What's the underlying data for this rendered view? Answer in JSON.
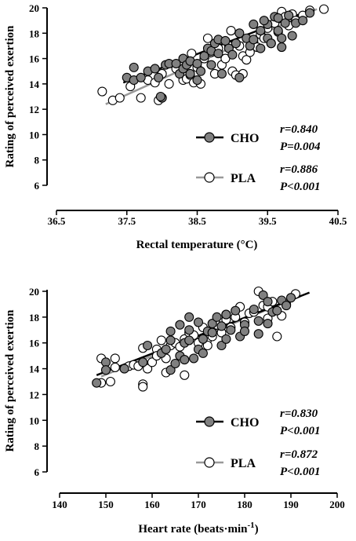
{
  "chart_data": [
    {
      "type": "scatter",
      "xlabel": "Rectal temperature (°C)",
      "ylabel": "Rating of perceived exertion",
      "xlim": [
        36.5,
        40.5
      ],
      "ylim": [
        6,
        20
      ],
      "xticks": [
        "36.5",
        "37.5",
        "38.5",
        "39.5",
        "40.5"
      ],
      "yticks": [
        "6",
        "8",
        "10",
        "12",
        "14",
        "16",
        "18",
        "20"
      ],
      "series": [
        {
          "name": "CHO",
          "marker": "filled-circle",
          "color": "#808080",
          "line_color": "#000000",
          "stats": [
            "r=0.840",
            "P=0.004"
          ],
          "fit": [
            [
              37.45,
              14.1
            ],
            [
              40.1,
              19.8
            ]
          ],
          "points": [
            [
              37.5,
              14.5
            ],
            [
              37.6,
              15.3
            ],
            [
              37.6,
              14.3
            ],
            [
              37.7,
              14.5
            ],
            [
              37.8,
              15.0
            ],
            [
              37.9,
              15.2
            ],
            [
              37.95,
              14.5
            ],
            [
              38.0,
              12.9
            ],
            [
              38.05,
              15.5
            ],
            [
              38.1,
              15.6
            ],
            [
              38.2,
              15.6
            ],
            [
              38.25,
              14.8
            ],
            [
              38.3,
              15.2
            ],
            [
              38.3,
              16.0
            ],
            [
              38.35,
              15.5
            ],
            [
              38.4,
              15.8
            ],
            [
              38.4,
              14.8
            ],
            [
              38.5,
              14.3
            ],
            [
              38.5,
              15.6
            ],
            [
              38.55,
              15.0
            ],
            [
              38.6,
              16.2
            ],
            [
              38.65,
              16.8
            ],
            [
              38.7,
              15.5
            ],
            [
              38.7,
              16.6
            ],
            [
              38.75,
              17.2
            ],
            [
              38.8,
              17.5
            ],
            [
              38.8,
              16.4
            ],
            [
              38.85,
              14.8
            ],
            [
              38.9,
              17.4
            ],
            [
              38.95,
              16.8
            ],
            [
              39.0,
              16.3
            ],
            [
              39.05,
              17.2
            ],
            [
              39.1,
              18.0
            ],
            [
              39.1,
              14.5
            ],
            [
              39.2,
              17.6
            ],
            [
              39.25,
              17.0
            ],
            [
              39.3,
              17.5
            ],
            [
              39.3,
              18.7
            ],
            [
              39.4,
              18.2
            ],
            [
              39.4,
              16.8
            ],
            [
              39.5,
              18.7
            ],
            [
              39.5,
              17.6
            ],
            [
              39.55,
              17.2
            ],
            [
              39.6,
              19.3
            ],
            [
              39.65,
              19.2
            ],
            [
              39.65,
              18.2
            ],
            [
              39.7,
              17.6
            ],
            [
              39.7,
              16.9
            ],
            [
              39.75,
              18.8
            ],
            [
              39.8,
              19.4
            ],
            [
              39.85,
              17.8
            ],
            [
              39.9,
              18.8
            ],
            [
              40.0,
              19.0
            ],
            [
              40.1,
              19.6
            ],
            [
              39.45,
              19.0
            ],
            [
              37.98,
              13.0
            ]
          ]
        },
        {
          "name": "PLA",
          "marker": "open-circle",
          "color": "#ffffff",
          "line_color": "#999999",
          "stats": [
            "r=0.886",
            "P<0.001"
          ],
          "fit": [
            [
              37.2,
              12.4
            ],
            [
              40.2,
              19.9
            ]
          ],
          "points": [
            [
              37.15,
              13.4
            ],
            [
              37.3,
              12.7
            ],
            [
              37.4,
              12.9
            ],
            [
              37.55,
              13.8
            ],
            [
              37.7,
              12.9
            ],
            [
              37.8,
              14.3
            ],
            [
              37.9,
              14.1
            ],
            [
              37.95,
              12.7
            ],
            [
              38.0,
              14.8
            ],
            [
              38.1,
              14.0
            ],
            [
              38.2,
              15.2
            ],
            [
              38.3,
              14.3
            ],
            [
              38.35,
              14.4
            ],
            [
              38.4,
              14.7
            ],
            [
              38.45,
              14.1
            ],
            [
              38.5,
              15.3
            ],
            [
              38.55,
              14.0
            ],
            [
              38.6,
              16.0
            ],
            [
              38.65,
              17.6
            ],
            [
              38.7,
              16.5
            ],
            [
              38.8,
              16.8
            ],
            [
              38.85,
              15.5
            ],
            [
              38.9,
              16.0
            ],
            [
              38.95,
              17.0
            ],
            [
              39.0,
              15.0
            ],
            [
              39.05,
              14.7
            ],
            [
              39.1,
              17.0
            ],
            [
              39.15,
              16.2
            ],
            [
              39.2,
              15.9
            ],
            [
              39.3,
              17.3
            ],
            [
              39.35,
              16.9
            ],
            [
              39.4,
              17.9
            ],
            [
              39.45,
              17.6
            ],
            [
              39.5,
              18.4
            ],
            [
              39.55,
              17.2
            ],
            [
              39.6,
              18.8
            ],
            [
              39.65,
              18.1
            ],
            [
              39.7,
              19.7
            ],
            [
              39.75,
              19.3
            ],
            [
              39.8,
              18.6
            ],
            [
              39.85,
              19.5
            ],
            [
              39.9,
              19.0
            ],
            [
              40.0,
              19.4
            ],
            [
              40.1,
              19.8
            ],
            [
              40.3,
              19.9
            ],
            [
              38.0,
              12.9
            ],
            [
              38.75,
              14.8
            ],
            [
              38.98,
              18.2
            ],
            [
              39.25,
              16.5
            ],
            [
              39.15,
              14.8
            ],
            [
              38.42,
              16.4
            ]
          ]
        }
      ]
    },
    {
      "type": "scatter",
      "xlabel": "Heart rate (beats·min",
      "xlabel_sup": "-1",
      "xlabel_end": ")",
      "ylabel": "Rating of perceived exertion",
      "xlim": [
        140,
        200
      ],
      "ylim": [
        6,
        20
      ],
      "xticks": [
        "140",
        "150",
        "160",
        "170",
        "180",
        "190",
        "200"
      ],
      "yticks": [
        "6",
        "8",
        "10",
        "12",
        "14",
        "16",
        "18",
        "20"
      ],
      "series": [
        {
          "name": "CHO",
          "marker": "filled-circle",
          "color": "#808080",
          "line_color": "#000000",
          "stats": [
            "r=0.830",
            "P<0.001"
          ],
          "fit": [
            [
              148,
              13.5
            ],
            [
              194,
              19.9
            ]
          ],
          "points": [
            [
              148,
              12.9
            ],
            [
              150,
              14.5
            ],
            [
              150,
              13.9
            ],
            [
              154,
              14.0
            ],
            [
              158,
              14.5
            ],
            [
              159,
              15.8
            ],
            [
              162,
              15.2
            ],
            [
              163,
              15.5
            ],
            [
              164,
              16.2
            ],
            [
              164,
              13.9
            ],
            [
              165,
              14.4
            ],
            [
              166,
              17.4
            ],
            [
              166,
              15.0
            ],
            [
              167,
              16.0
            ],
            [
              167,
              14.7
            ],
            [
              168,
              17.0
            ],
            [
              168,
              16.2
            ],
            [
              169,
              14.8
            ],
            [
              170,
              17.6
            ],
            [
              170,
              15.5
            ],
            [
              171,
              15.2
            ],
            [
              172,
              16.9
            ],
            [
              173,
              17.5
            ],
            [
              173,
              16.8
            ],
            [
              174,
              18.0
            ],
            [
              175,
              17.3
            ],
            [
              175,
              15.8
            ],
            [
              176,
              18.2
            ],
            [
              176,
              16.3
            ],
            [
              177,
              17.0
            ],
            [
              178,
              18.5
            ],
            [
              179,
              16.5
            ],
            [
              180,
              17.4
            ],
            [
              180,
              16.9
            ],
            [
              182,
              18.6
            ],
            [
              183,
              17.7
            ],
            [
              184,
              19.7
            ],
            [
              185,
              19.2
            ],
            [
              185,
              17.5
            ],
            [
              186,
              18.4
            ],
            [
              187,
              18.5
            ],
            [
              188,
              19.3
            ],
            [
              189,
              18.9
            ],
            [
              190,
              19.5
            ],
            [
              183,
              16.7
            ],
            [
              168,
              18.0
            ],
            [
              171,
              16.3
            ],
            [
              164,
              16.9
            ]
          ]
        },
        {
          "name": "PLA",
          "marker": "open-circle",
          "color": "#ffffff",
          "line_color": "#999999",
          "stats": [
            "r=0.872",
            "P<0.001"
          ],
          "fit": [
            [
              149,
              13.4
            ],
            [
              192,
              19.6
            ]
          ],
          "points": [
            [
              149,
              14.8
            ],
            [
              149,
              12.9
            ],
            [
              151,
              13.0
            ],
            [
              152,
              14.1
            ],
            [
              152,
              14.8
            ],
            [
              155,
              14.2
            ],
            [
              156,
              14.3
            ],
            [
              157,
              14.2
            ],
            [
              158,
              15.6
            ],
            [
              158,
              12.8
            ],
            [
              158,
              12.6
            ],
            [
              159,
              14.0
            ],
            [
              160,
              14.5
            ],
            [
              161,
              15.5
            ],
            [
              161,
              15.0
            ],
            [
              162,
              16.2
            ],
            [
              163,
              14.8
            ],
            [
              163,
              13.7
            ],
            [
              164,
              15.8
            ],
            [
              165,
              16.0
            ],
            [
              166,
              15.7
            ],
            [
              167,
              16.3
            ],
            [
              167,
              13.5
            ],
            [
              168,
              16.8
            ],
            [
              169,
              16.6
            ],
            [
              170,
              16.0
            ],
            [
              171,
              17.2
            ],
            [
              172,
              16.3
            ],
            [
              173,
              16.5
            ],
            [
              174,
              17.4
            ],
            [
              175,
              16.8
            ],
            [
              176,
              17.8
            ],
            [
              176,
              18.2
            ],
            [
              177,
              17.2
            ],
            [
              178,
              18.0
            ],
            [
              179,
              18.8
            ],
            [
              180,
              17.6
            ],
            [
              181,
              18.3
            ],
            [
              182,
              18.4
            ],
            [
              183,
              20.0
            ],
            [
              184,
              18.9
            ],
            [
              185,
              18.8
            ],
            [
              186,
              19.2
            ],
            [
              187,
              16.5
            ],
            [
              188,
              18.1
            ],
            [
              189,
              19.0
            ],
            [
              191,
              19.8
            ],
            [
              185,
              17.9
            ],
            [
              172,
              15.8
            ]
          ]
        }
      ]
    }
  ]
}
